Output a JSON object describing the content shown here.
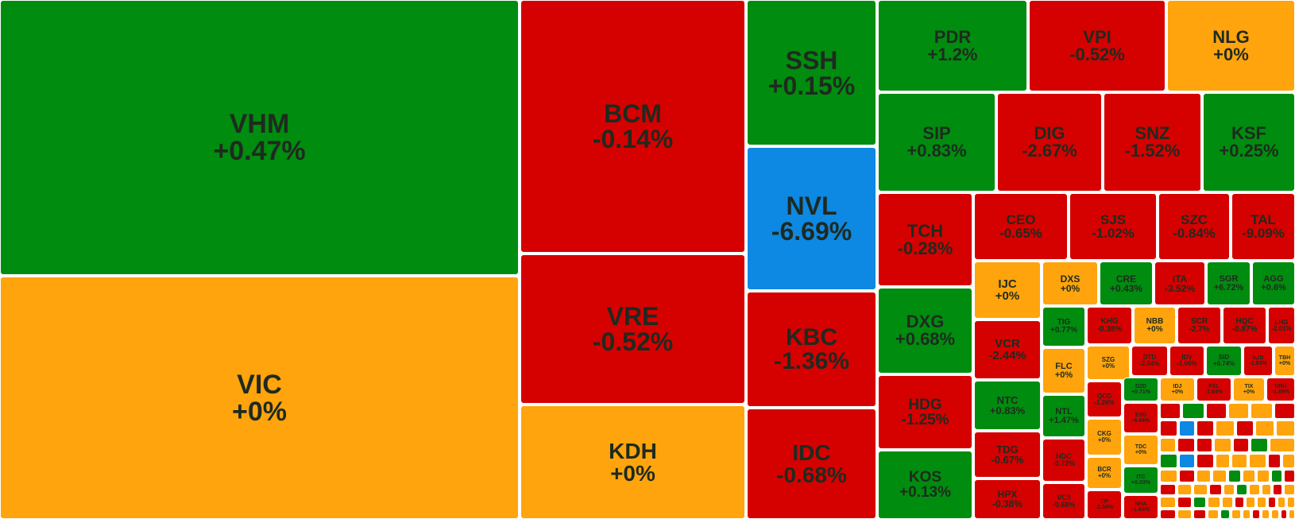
{
  "colors": {
    "up": "#008c0f",
    "down": "#d50000",
    "flat": "#ffa40c",
    "floor": "#0d88e3",
    "ceiling": "#b5009e"
  },
  "chart_data": {
    "type": "treemap",
    "title": "",
    "items": [
      {
        "ticker": "VHM",
        "change": "+0.47%",
        "status": "up"
      },
      {
        "ticker": "VIC",
        "change": "+0%",
        "status": "flat"
      },
      {
        "ticker": "BCM",
        "change": "-0.14%",
        "status": "down"
      },
      {
        "ticker": "VRE",
        "change": "-0.52%",
        "status": "down"
      },
      {
        "ticker": "KDH",
        "change": "+0%",
        "status": "flat"
      },
      {
        "ticker": "SSH",
        "change": "+0.15%",
        "status": "up"
      },
      {
        "ticker": "NVL",
        "change": "-6.69%",
        "status": "floor"
      },
      {
        "ticker": "KBC",
        "change": "-1.36%",
        "status": "down"
      },
      {
        "ticker": "IDC",
        "change": "-0.68%",
        "status": "down"
      },
      {
        "ticker": "PDR",
        "change": "+1.2%",
        "status": "up"
      },
      {
        "ticker": "VPI",
        "change": "-0.52%",
        "status": "down"
      },
      {
        "ticker": "NLG",
        "change": "+0%",
        "status": "flat"
      },
      {
        "ticker": "SIP",
        "change": "+0.83%",
        "status": "up"
      },
      {
        "ticker": "DIG",
        "change": "-2.67%",
        "status": "down"
      },
      {
        "ticker": "SNZ",
        "change": "-1.52%",
        "status": "down"
      },
      {
        "ticker": "KSF",
        "change": "+0.25%",
        "status": "up"
      },
      {
        "ticker": "TCH",
        "change": "-0.28%",
        "status": "down"
      },
      {
        "ticker": "CEO",
        "change": "-0.65%",
        "status": "down"
      },
      {
        "ticker": "SJS",
        "change": "-1.02%",
        "status": "down"
      },
      {
        "ticker": "SZC",
        "change": "-0.84%",
        "status": "down"
      },
      {
        "ticker": "TAL",
        "change": "-9.09%",
        "status": "down"
      },
      {
        "ticker": "DXG",
        "change": "+0.68%",
        "status": "up"
      },
      {
        "ticker": "HDG",
        "change": "-1.25%",
        "status": "down"
      },
      {
        "ticker": "KOS",
        "change": "+0.13%",
        "status": "up"
      },
      {
        "ticker": "IJC",
        "change": "+0%",
        "status": "flat"
      },
      {
        "ticker": "DXS",
        "change": "+0%",
        "status": "flat"
      },
      {
        "ticker": "CRE",
        "change": "+0.43%",
        "status": "up"
      },
      {
        "ticker": "ITA",
        "change": "-3.52%",
        "status": "down"
      },
      {
        "ticker": "SGR",
        "change": "+6.72%",
        "status": "up"
      },
      {
        "ticker": "AGG",
        "change": "+0.6%",
        "status": "up"
      },
      {
        "ticker": "VCR",
        "change": "-2.44%",
        "status": "down"
      },
      {
        "ticker": "TIG",
        "change": "+0.77%",
        "status": "up"
      },
      {
        "ticker": "KHG",
        "change": "-0.38%",
        "status": "down"
      },
      {
        "ticker": "NBB",
        "change": "+0%",
        "status": "flat"
      },
      {
        "ticker": "SCR",
        "change": "-2.7%",
        "status": "down"
      },
      {
        "ticker": "HQC",
        "change": "-0.87%",
        "status": "down"
      },
      {
        "ticker": "LHG",
        "change": "-2.01%",
        "status": "down"
      },
      {
        "ticker": "FLC",
        "change": "+0%",
        "status": "flat"
      },
      {
        "ticker": "SZG",
        "change": "+0%",
        "status": "flat"
      },
      {
        "ticker": "DTD",
        "change": "-2.04%",
        "status": "down"
      },
      {
        "ticker": "IDV",
        "change": "-1.06%",
        "status": "down"
      },
      {
        "ticker": "SID",
        "change": "+0.74%",
        "status": "up"
      },
      {
        "ticker": "SZB",
        "change": "-1.93%",
        "status": "down"
      },
      {
        "ticker": "TBH",
        "change": "+0%",
        "status": "flat"
      },
      {
        "ticker": "NTC",
        "change": "+0.83%",
        "status": "up"
      },
      {
        "ticker": "NTL",
        "change": "+1.47%",
        "status": "up"
      },
      {
        "ticker": "QCG",
        "change": "-1.26%",
        "status": "down"
      },
      {
        "ticker": "D2D",
        "change": "+0.71%",
        "status": "up"
      },
      {
        "ticker": "IDJ",
        "change": "+0%",
        "status": "flat"
      },
      {
        "ticker": "PXL",
        "change": "-1.64%",
        "status": "down"
      },
      {
        "ticker": "TIX",
        "change": "+0%",
        "status": "flat"
      },
      {
        "ticker": "DRH",
        "change": "-1.09%",
        "status": "down"
      },
      {
        "ticker": "TDG",
        "change": "-0.67%",
        "status": "down"
      },
      {
        "ticker": "HDC",
        "change": "-0.72%",
        "status": "down"
      },
      {
        "ticker": "CKG",
        "change": "+0%",
        "status": "flat"
      },
      {
        "ticker": "HPX",
        "change": "-0.38%",
        "status": "down"
      },
      {
        "ticker": "VC3",
        "change": "-0.68%",
        "status": "down"
      },
      {
        "ticker": "BCR",
        "change": "+0%",
        "status": "flat"
      },
      {
        "ticker": "TIP",
        "change": "-1.34%",
        "status": "down"
      },
      {
        "ticker": "EVG",
        "change": "-4.44%",
        "status": "down"
      },
      {
        "ticker": "TDC",
        "change": "+0%",
        "status": "flat"
      },
      {
        "ticker": "ITC",
        "change": "+0.03%",
        "status": "up"
      },
      {
        "ticker": "NHA",
        "change": "-1.64%",
        "status": "down"
      }
    ]
  }
}
